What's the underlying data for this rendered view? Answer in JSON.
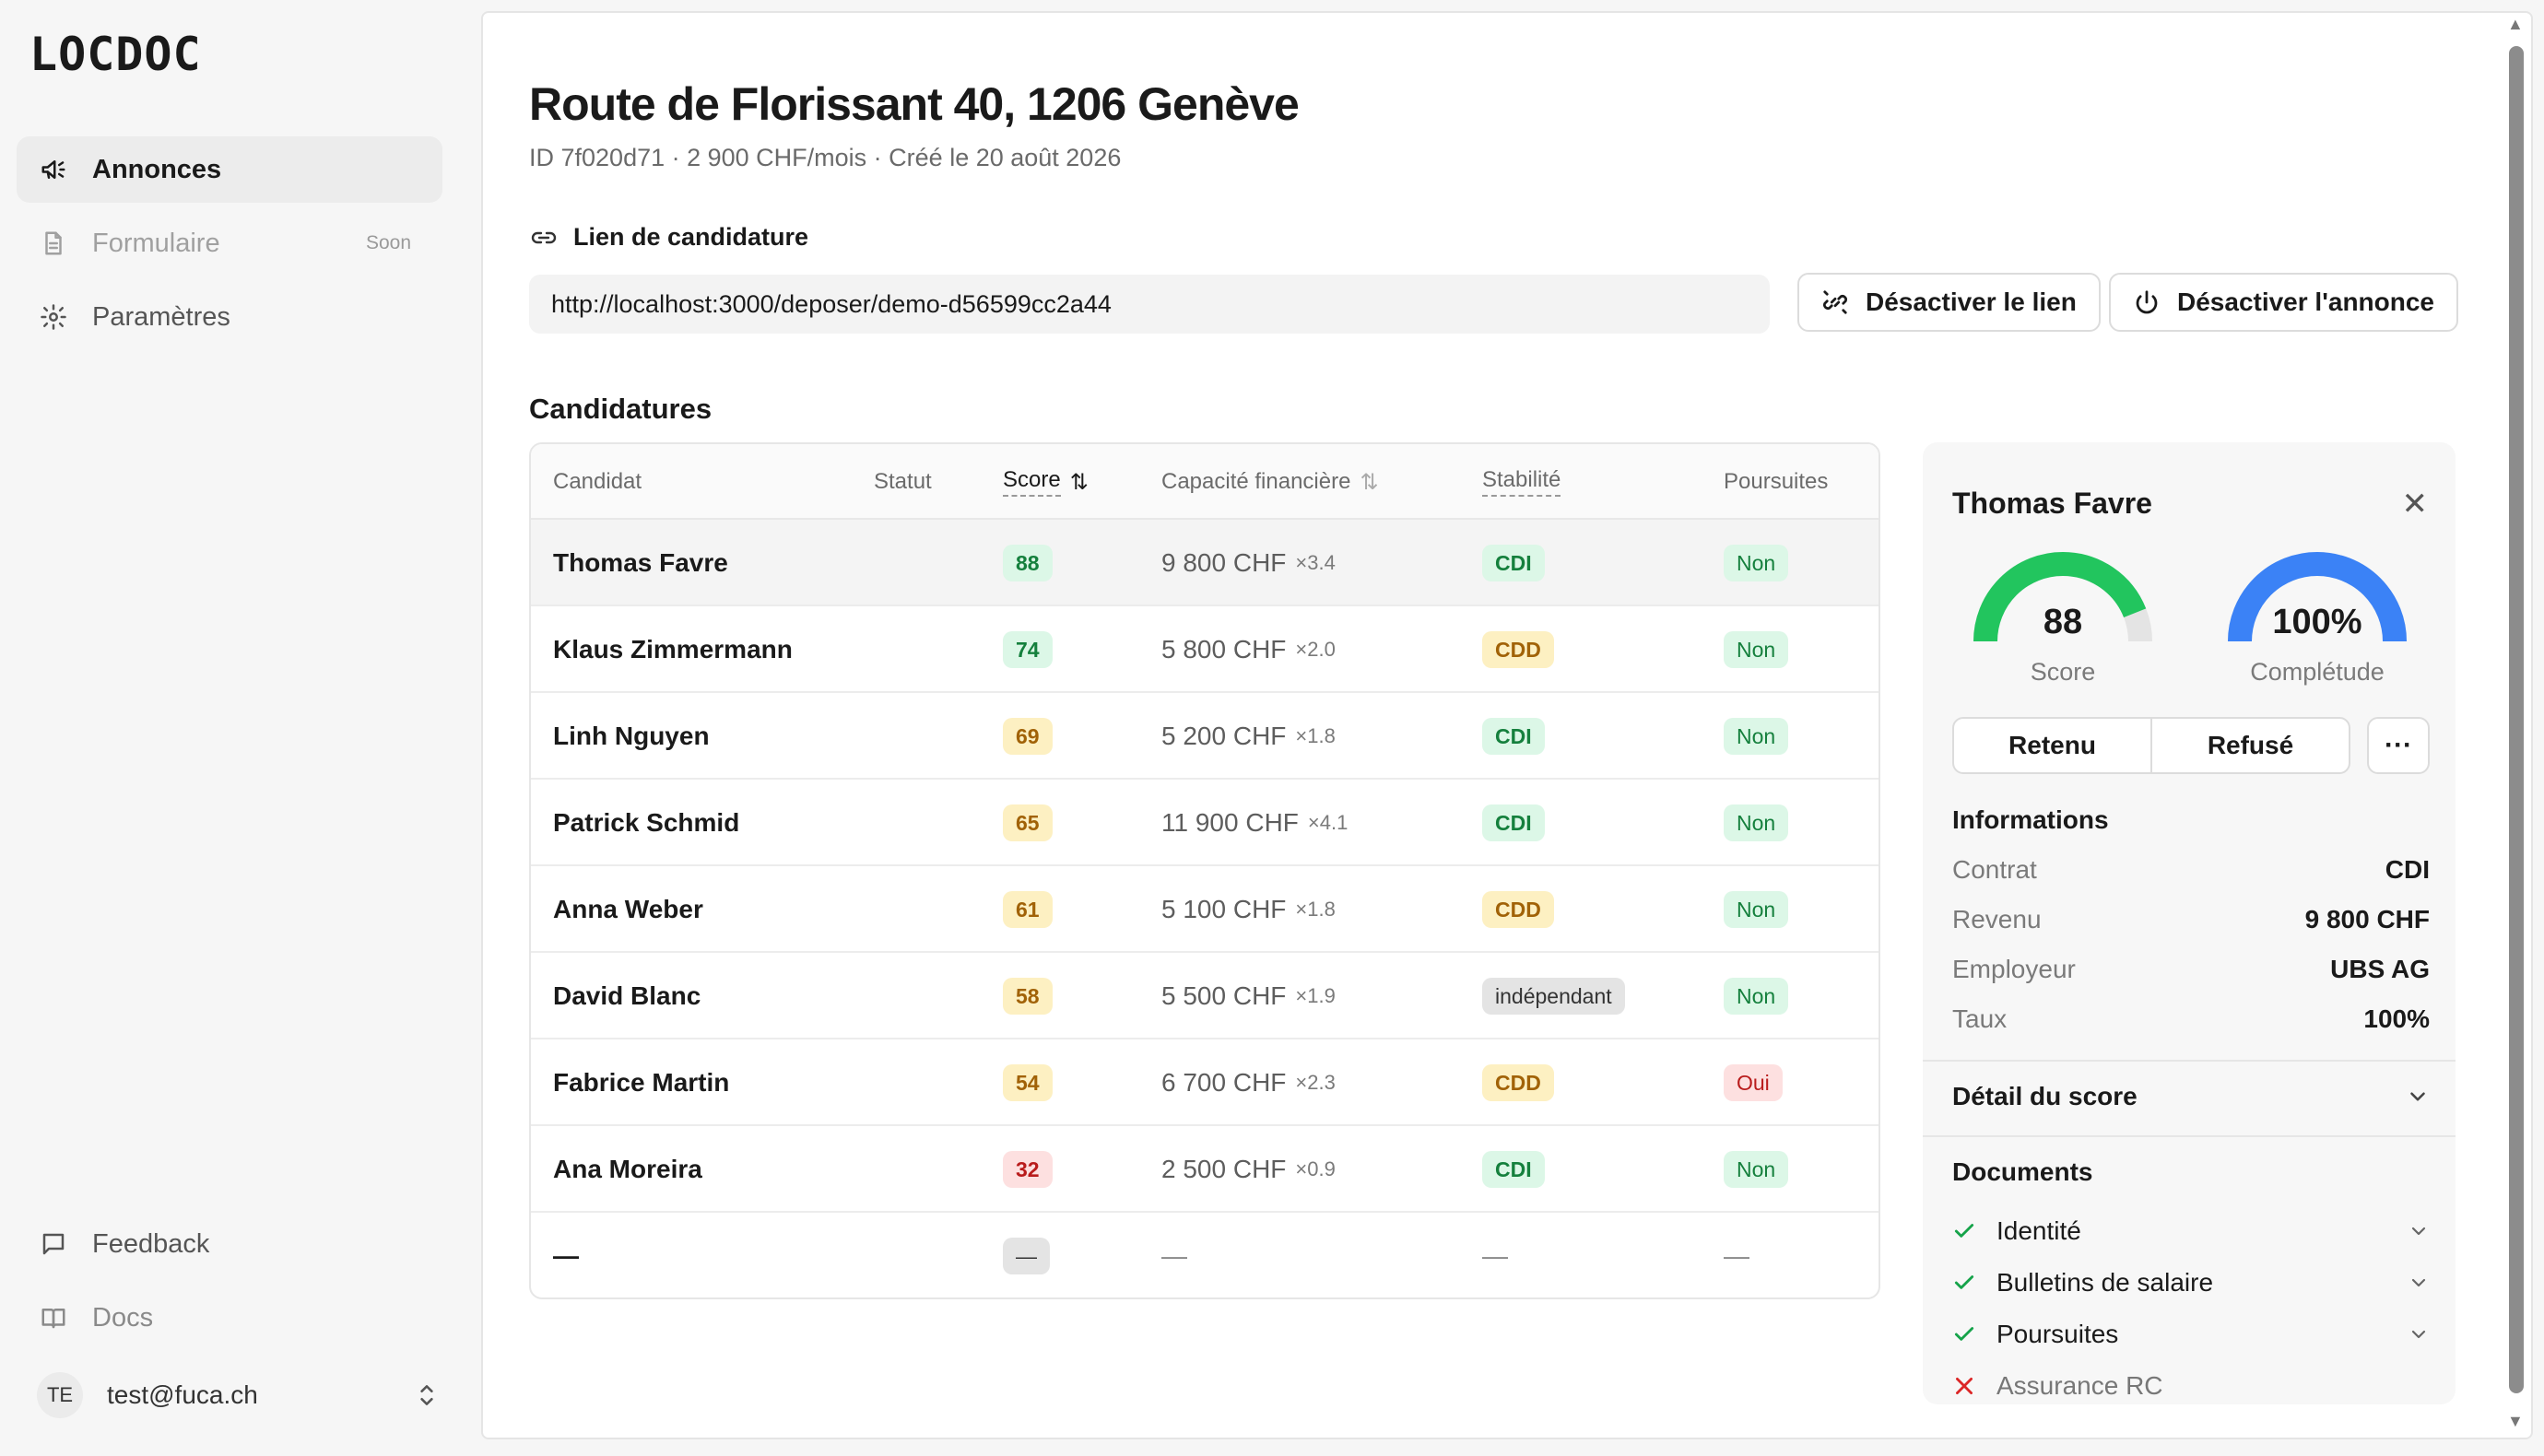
{
  "app": {
    "name": "LOCDOC"
  },
  "sidebar": {
    "items": [
      {
        "label": "Annonces",
        "icon": "megaphone-icon",
        "active": true
      },
      {
        "label": "Formulaire",
        "icon": "document-icon",
        "badge": "Soon",
        "disabled": true
      },
      {
        "label": "Paramètres",
        "icon": "gear-icon"
      }
    ],
    "bottom": [
      {
        "label": "Feedback",
        "icon": "chat-bubble-icon"
      },
      {
        "label": "Docs",
        "icon": "book-icon"
      }
    ],
    "user": {
      "initials": "TE",
      "email": "test@fuca.ch"
    }
  },
  "listing": {
    "title": "Route de Florissant 40, 1206 Genève",
    "meta": "ID 7f020d71 · 2 900 CHF/mois · Créé le 20 août 2026",
    "link_label": "Lien de candidature",
    "link_url": "http://localhost:3000/deposer/demo-d56599cc2a44",
    "btn_disable_link": "Désactiver le lien",
    "btn_disable_listing": "Désactiver l'annonce"
  },
  "applications": {
    "title": "Candidatures",
    "columns": {
      "candidate": "Candidat",
      "status": "Statut",
      "score": "Score",
      "capacity": "Capacité financière",
      "stability": "Stabilité",
      "pursuits": "Poursuites"
    },
    "rows": [
      {
        "name": "Thomas Favre",
        "score": "88",
        "amount": "9 800 CHF",
        "mult": "×3.4",
        "stability": "CDI",
        "pursuits": "Non"
      },
      {
        "name": "Klaus Zimmermann",
        "score": "74",
        "amount": "5 800 CHF",
        "mult": "×2.0",
        "stability": "CDD",
        "pursuits": "Non"
      },
      {
        "name": "Linh Nguyen",
        "score": "69",
        "amount": "5 200 CHF",
        "mult": "×1.8",
        "stability": "CDI",
        "pursuits": "Non"
      },
      {
        "name": "Patrick Schmid",
        "score": "65",
        "amount": "11 900 CHF",
        "mult": "×4.1",
        "stability": "CDI",
        "pursuits": "Non"
      },
      {
        "name": "Anna Weber",
        "score": "61",
        "amount": "5 100 CHF",
        "mult": "×1.8",
        "stability": "CDD",
        "pursuits": "Non"
      },
      {
        "name": "David Blanc",
        "score": "58",
        "amount": "5 500 CHF",
        "mult": "×1.9",
        "stability": "indépendant",
        "pursuits": "Non"
      },
      {
        "name": "Fabrice Martin",
        "score": "54",
        "amount": "6 700 CHF",
        "mult": "×2.3",
        "stability": "CDD",
        "pursuits": "Oui"
      },
      {
        "name": "Ana Moreira",
        "score": "32",
        "amount": "2 500 CHF",
        "mult": "×0.9",
        "stability": "CDI",
        "pursuits": "Non"
      },
      {
        "name": "—",
        "score": "—",
        "amount": "—",
        "mult": "",
        "stability": "—",
        "pursuits": "—"
      }
    ]
  },
  "detail": {
    "name": "Thomas Favre",
    "score": {
      "value": "88",
      "label": "Score",
      "fraction": 0.88,
      "color": "#22c55e"
    },
    "completeness": {
      "value": "100%",
      "label": "Complétude",
      "fraction": 1.0,
      "color": "#3b82f6"
    },
    "btn_retained": "Retenu",
    "btn_refused": "Refusé",
    "info_title": "Informations",
    "info": [
      {
        "label": "Contrat",
        "value": "CDI"
      },
      {
        "label": "Revenu",
        "value": "9 800 CHF"
      },
      {
        "label": "Employeur",
        "value": "UBS AG"
      },
      {
        "label": "Taux",
        "value": "100%"
      }
    ],
    "score_detail_title": "Détail du score",
    "documents_title": "Documents",
    "documents": [
      {
        "label": "Identité",
        "ok": true
      },
      {
        "label": "Bulletins de salaire",
        "ok": true
      },
      {
        "label": "Poursuites",
        "ok": true
      },
      {
        "label": "Assurance RC",
        "ok": false
      }
    ]
  },
  "colors": {
    "green_bg": "#dcf7e7",
    "green_fg": "#15803d",
    "yellow_bg": "#fdf0c2",
    "yellow_fg": "#a16207",
    "red_bg": "#fde0e0",
    "red_fg": "#b91c1c",
    "gray_bg": "#e4e4e4",
    "gray_fg": "#333333"
  }
}
